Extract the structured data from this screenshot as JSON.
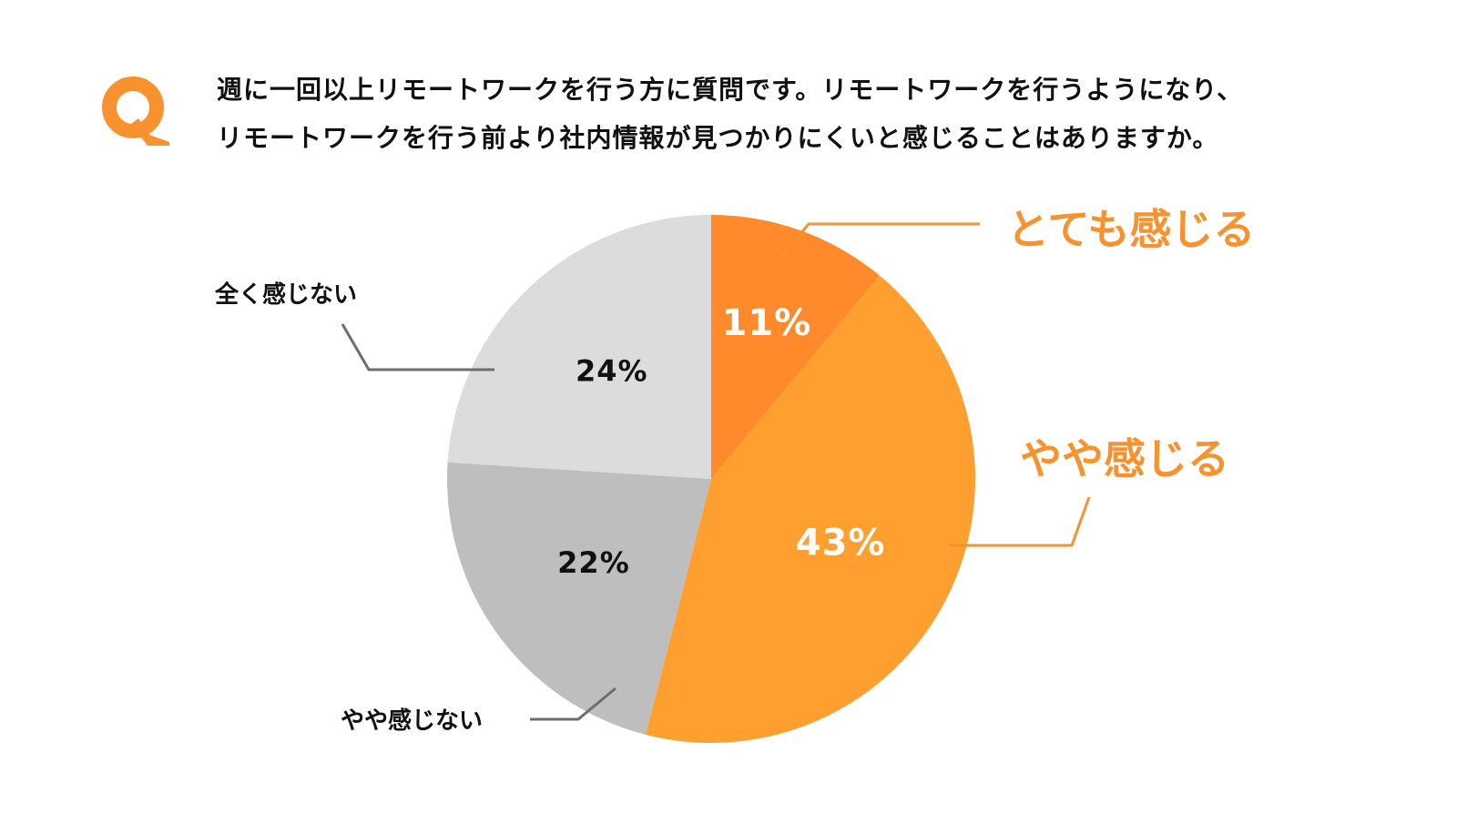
{
  "question": {
    "mark": "Q",
    "line1": "週に一回以上リモートワークを行う方に質問です。リモートワークを行うようになり、",
    "line2": "リモートワークを行う前より社内情報が見つかりにくいと感じることはありますか。"
  },
  "colors": {
    "accent": "#F7922E",
    "totemo": "#FE8A2B",
    "yaya": "#FE9F30",
    "yaya_nai": "#BEBEBE",
    "mattaku_nai": "#DCDCDC",
    "leader_dark": "#6E6E6E",
    "leader_orange": "#F7922E"
  },
  "chart_data": {
    "type": "pie",
    "title": "",
    "start": "top, clockwise",
    "slices": [
      {
        "label": "とても感じる",
        "value": 11,
        "value_label": "11%",
        "color": "#FE8A2B",
        "value_color": "#ffffff"
      },
      {
        "label": "やや感じる",
        "value": 43,
        "value_label": "43%",
        "color": "#FE9F30",
        "value_color": "#ffffff"
      },
      {
        "label": "やや感じない",
        "value": 22,
        "value_label": "22%",
        "color": "#BEBEBE",
        "value_color": "#111111"
      },
      {
        "label": "全く感じない",
        "value": 24,
        "value_label": "24%",
        "color": "#DCDCDC",
        "value_color": "#111111"
      }
    ]
  }
}
